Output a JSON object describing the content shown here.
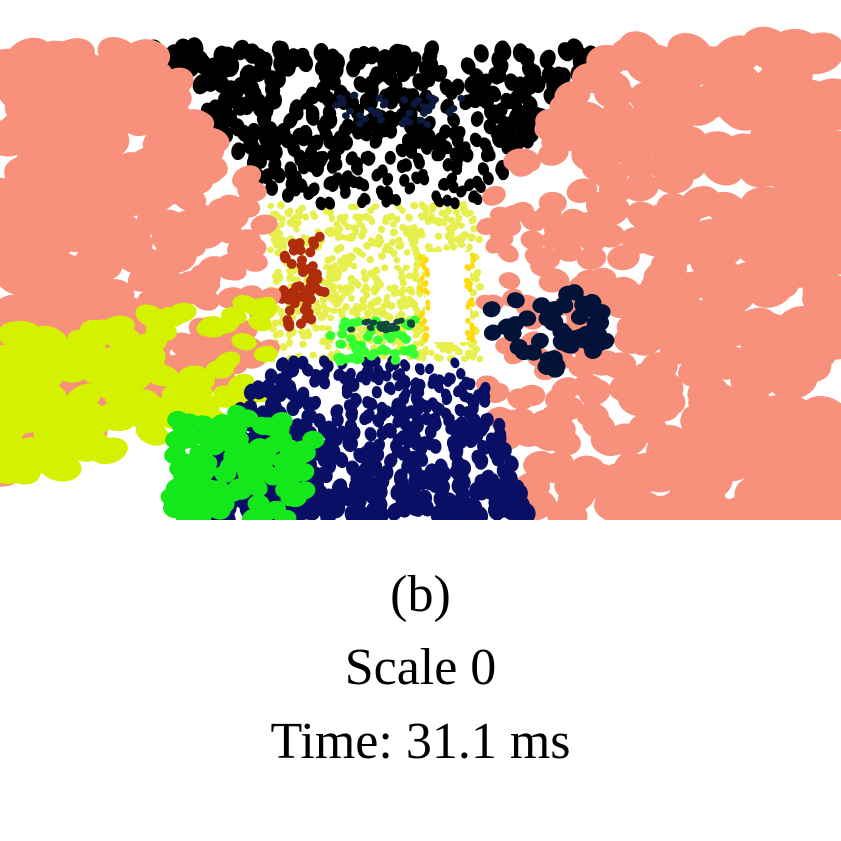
{
  "figure": {
    "label": "(b)",
    "scale_text": "Scale 0",
    "time_text": "Time: 31.1 ms"
  },
  "palette": {
    "left_wall": "#f7917c",
    "right_wall": "#f7917c",
    "ceiling": "#000000",
    "ceiling_far": "#0b1a3e",
    "back_wall": "#e6ef4c",
    "left_lower": "#d4f200",
    "floor": "#0a0f66",
    "chair": "#14e81a",
    "far_table": "#33ff33",
    "far_table_top": "#0d4a3a",
    "door": "#ffffff",
    "door_frame": "#ffd90a",
    "brown_object": "#b02d0c",
    "dark_object": "#021238"
  }
}
